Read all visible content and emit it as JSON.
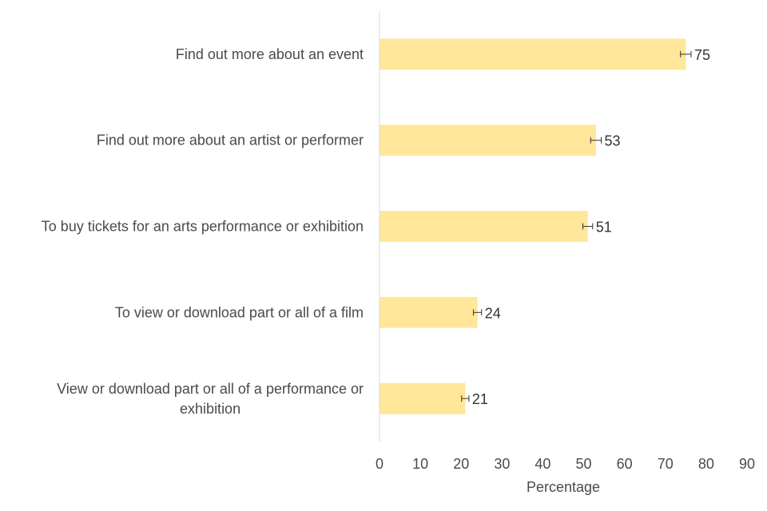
{
  "chart_data": {
    "type": "bar",
    "orientation": "horizontal",
    "categories": [
      "Find out more about an event",
      "Find out more about an artist or performer",
      "To buy tickets for an arts performance or exhibition",
      "To view or download part or all of a film",
      "View or download part or all of a performance or exhibition"
    ],
    "values": [
      75,
      53,
      51,
      24,
      21
    ],
    "error": [
      1.3,
      1.3,
      1.2,
      1.0,
      0.9
    ],
    "data_labels": [
      "75",
      "53",
      "51",
      "24",
      "21"
    ],
    "xlabel": "Percentage",
    "ylabel": "",
    "xlim": [
      0,
      90
    ],
    "xticks": [
      "0",
      "10",
      "20",
      "30",
      "40",
      "50",
      "60",
      "70",
      "80",
      "90"
    ],
    "grid": false,
    "legend": "none",
    "bar_color": "#FFE699",
    "error_color": "#333333",
    "axis_color": "#D9D9D9"
  }
}
